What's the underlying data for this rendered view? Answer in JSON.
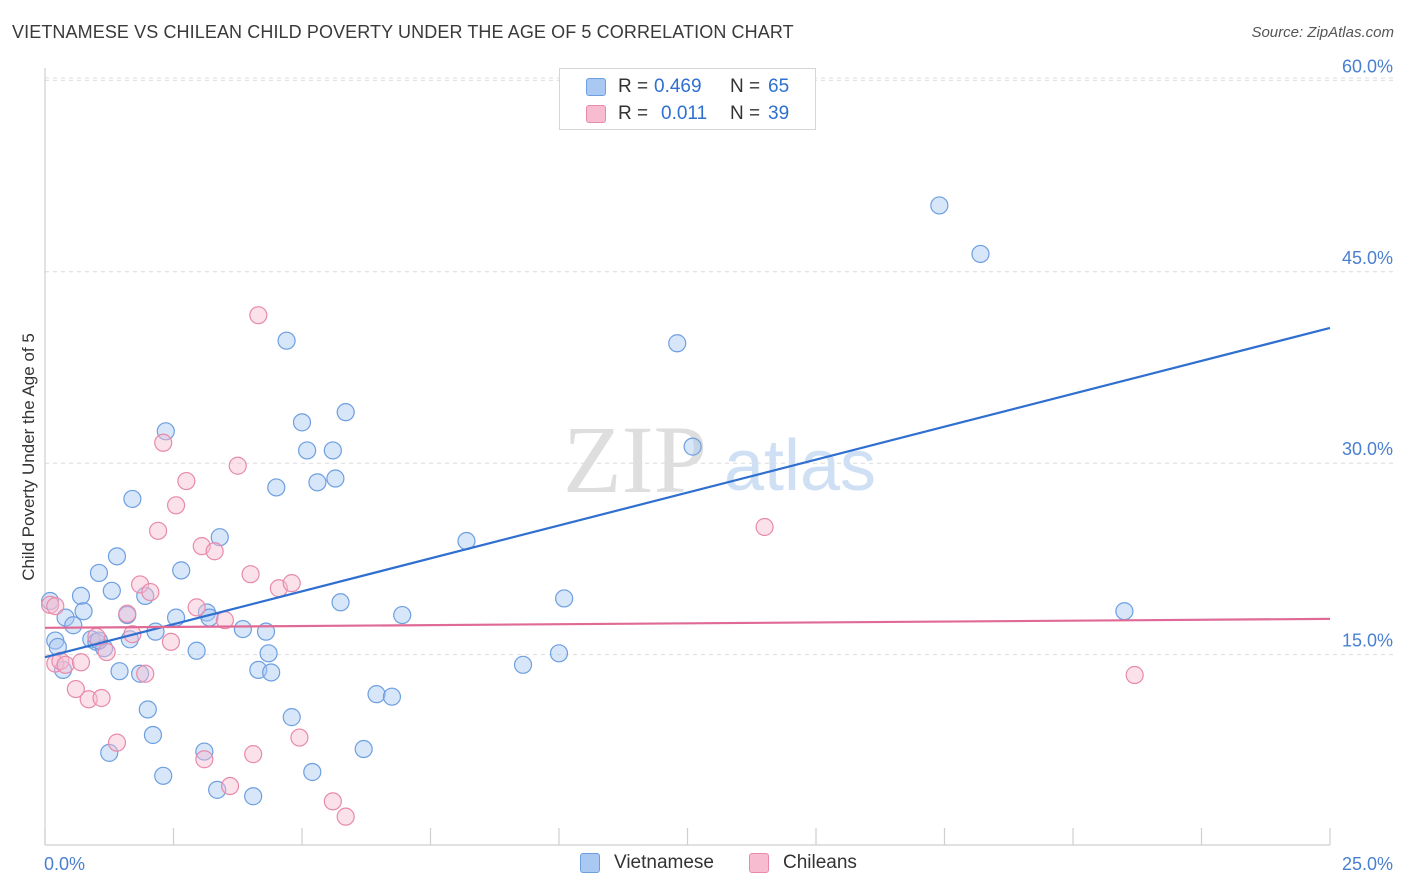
{
  "title": "VIETNAMESE VS CHILEAN CHILD POVERTY UNDER THE AGE OF 5 CORRELATION CHART",
  "source": "Source: ZipAtlas.com",
  "watermark": {
    "zip": "ZIP",
    "atlas": "atlas"
  },
  "colors": {
    "blue_fill": "#a9c8f2",
    "blue_stroke": "#6d9fe0",
    "blue_line": "#2f6fd0",
    "pink_fill": "#f7bcd0",
    "pink_stroke": "#e88aaa",
    "pink_line": "#e06a96",
    "tick_text": "#4a7fd0",
    "grid": "#dcdcdc"
  },
  "legend": {
    "rows": [
      {
        "r_label": "R =",
        "r_value": "0.469",
        "n_label": "N =",
        "n_value": "65",
        "color": "blue"
      },
      {
        "r_label": "R =",
        "r_value": "0.011",
        "n_label": "N =",
        "n_value": "39",
        "color": "pink"
      }
    ]
  },
  "bottom_legend": [
    {
      "label": "Vietnamese",
      "color": "blue"
    },
    {
      "label": "Chileans",
      "color": "pink"
    }
  ],
  "chart_data": {
    "type": "scatter",
    "title": "VIETNAMESE VS CHILEAN CHILD POVERTY UNDER THE AGE OF 5 CORRELATION CHART",
    "xlabel": "",
    "ylabel": "Child Poverty Under the Age of 5",
    "xlim": [
      0,
      25
    ],
    "ylim": [
      0,
      62
    ],
    "x_tick_labels": [
      {
        "value": 0,
        "label": "0.0%"
      },
      {
        "value": 25,
        "label": "25.0%"
      }
    ],
    "y_tick_labels": [
      {
        "value": 15,
        "label": "15.0%"
      },
      {
        "value": 30,
        "label": "30.0%"
      },
      {
        "value": 45,
        "label": "45.0%"
      },
      {
        "value": 60,
        "label": "60.0%"
      }
    ],
    "x_minor_ticks": [
      0,
      2.5,
      5,
      7.5,
      10,
      12.5,
      15,
      17.5,
      20,
      22.5,
      25
    ],
    "grid": true,
    "legend_position": "top-center",
    "series": [
      {
        "name": "Vietnamese",
        "color": "blue",
        "trend": {
          "x": [
            0,
            25
          ],
          "y": [
            14.8,
            40.6
          ]
        },
        "points": [
          [
            0.1,
            19.2
          ],
          [
            0.2,
            16.1
          ],
          [
            0.25,
            15.6
          ],
          [
            0.35,
            13.8
          ],
          [
            0.4,
            17.9
          ],
          [
            0.55,
            17.3
          ],
          [
            0.7,
            19.6
          ],
          [
            0.75,
            18.4
          ],
          [
            0.9,
            16.2
          ],
          [
            1.0,
            16.0
          ],
          [
            1.05,
            21.4
          ],
          [
            1.15,
            15.5
          ],
          [
            1.25,
            7.3
          ],
          [
            1.3,
            20.0
          ],
          [
            1.4,
            22.7
          ],
          [
            1.45,
            13.7
          ],
          [
            1.6,
            18.1
          ],
          [
            1.65,
            16.2
          ],
          [
            1.7,
            27.2
          ],
          [
            1.85,
            13.5
          ],
          [
            1.95,
            19.6
          ],
          [
            2.0,
            10.7
          ],
          [
            2.1,
            8.7
          ],
          [
            2.15,
            16.8
          ],
          [
            2.3,
            5.5
          ],
          [
            2.35,
            32.5
          ],
          [
            2.55,
            17.9
          ],
          [
            2.65,
            21.6
          ],
          [
            2.95,
            15.3
          ],
          [
            3.1,
            7.4
          ],
          [
            3.15,
            18.3
          ],
          [
            3.2,
            17.9
          ],
          [
            3.35,
            4.4
          ],
          [
            3.4,
            24.2
          ],
          [
            3.85,
            17.0
          ],
          [
            4.05,
            3.9
          ],
          [
            4.15,
            13.8
          ],
          [
            4.3,
            16.8
          ],
          [
            4.35,
            15.1
          ],
          [
            4.4,
            13.6
          ],
          [
            4.5,
            28.1
          ],
          [
            4.7,
            39.6
          ],
          [
            4.8,
            10.1
          ],
          [
            5.0,
            33.2
          ],
          [
            5.1,
            31.0
          ],
          [
            5.2,
            5.8
          ],
          [
            5.3,
            28.5
          ],
          [
            5.6,
            31.0
          ],
          [
            5.65,
            28.8
          ],
          [
            5.75,
            19.1
          ],
          [
            5.85,
            34.0
          ],
          [
            6.2,
            7.6
          ],
          [
            6.45,
            11.9
          ],
          [
            6.75,
            11.7
          ],
          [
            6.95,
            18.1
          ],
          [
            8.2,
            23.9
          ],
          [
            9.3,
            14.2
          ],
          [
            10.0,
            15.1
          ],
          [
            10.1,
            19.4
          ],
          [
            12.3,
            39.4
          ],
          [
            12.6,
            31.3
          ],
          [
            17.4,
            50.2
          ],
          [
            18.2,
            46.4
          ],
          [
            21.0,
            18.4
          ],
          [
            1.05,
            16.1
          ]
        ]
      },
      {
        "name": "Chileans",
        "color": "pink",
        "trend": {
          "x": [
            0,
            25
          ],
          "y": [
            17.1,
            17.8
          ]
        },
        "points": [
          [
            0.1,
            18.9
          ],
          [
            0.2,
            14.3
          ],
          [
            0.3,
            14.5
          ],
          [
            0.4,
            14.2
          ],
          [
            0.6,
            12.3
          ],
          [
            0.7,
            14.4
          ],
          [
            0.85,
            11.5
          ],
          [
            1.0,
            16.4
          ],
          [
            1.1,
            11.6
          ],
          [
            1.2,
            15.2
          ],
          [
            1.4,
            8.1
          ],
          [
            1.6,
            18.2
          ],
          [
            1.7,
            16.6
          ],
          [
            1.85,
            20.5
          ],
          [
            1.95,
            13.5
          ],
          [
            2.05,
            19.9
          ],
          [
            2.2,
            24.7
          ],
          [
            2.3,
            31.6
          ],
          [
            2.45,
            16.0
          ],
          [
            2.55,
            26.7
          ],
          [
            2.75,
            28.6
          ],
          [
            2.95,
            18.7
          ],
          [
            3.05,
            23.5
          ],
          [
            3.1,
            6.8
          ],
          [
            3.3,
            23.1
          ],
          [
            3.5,
            17.7
          ],
          [
            3.6,
            4.7
          ],
          [
            3.75,
            29.8
          ],
          [
            4.0,
            21.3
          ],
          [
            4.05,
            7.2
          ],
          [
            4.15,
            41.6
          ],
          [
            4.55,
            20.2
          ],
          [
            4.8,
            20.6
          ],
          [
            4.95,
            8.5
          ],
          [
            5.6,
            3.5
          ],
          [
            5.85,
            2.3
          ],
          [
            14.0,
            25.0
          ],
          [
            21.2,
            13.4
          ],
          [
            0.2,
            18.8
          ]
        ]
      }
    ]
  }
}
